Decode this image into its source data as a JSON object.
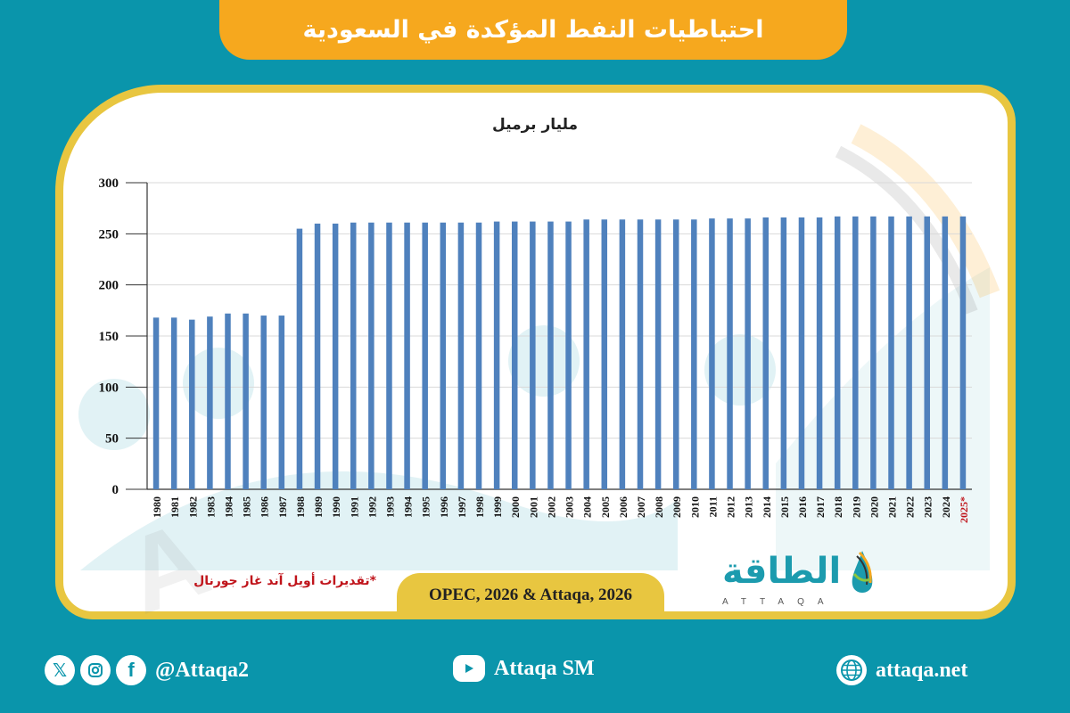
{
  "header": {
    "title": "احتياطيات النفط المؤكدة في السعودية"
  },
  "chart": {
    "unit_label": "مليار برميل",
    "note": "*تقديرات أويل آند غاز جورنال",
    "source": "OPEC, 2026 & Attaqa, 2026"
  },
  "logo": {
    "arabic": "الطاقة",
    "english": "ATTAQA"
  },
  "footer": {
    "social_handle": "@Attaqa2",
    "youtube": "Attaqa SM",
    "website": "attaqa.net",
    "icons": [
      "x-icon",
      "instagram-icon",
      "facebook-icon",
      "youtube-icon",
      "globe-icon"
    ]
  },
  "colors": {
    "background": "#0A95AB",
    "banner": "#F6A81E",
    "panel_border": "#E8C640",
    "bar": "#4F81BD",
    "estimate_label": "#C0141B"
  },
  "chart_data": {
    "type": "bar",
    "title": "احتياطيات النفط المؤكدة في السعودية",
    "ylabel": "مليار برميل",
    "xlabel": "",
    "ylim": [
      0,
      300
    ],
    "yticks": [
      0,
      50,
      100,
      150,
      200,
      250,
      300
    ],
    "grid": true,
    "legend": null,
    "categories": [
      "1980",
      "1981",
      "1982",
      "1983",
      "1984",
      "1985",
      "1986",
      "1987",
      "1988",
      "1989",
      "1990",
      "1991",
      "1992",
      "1993",
      "1994",
      "1995",
      "1996",
      "1997",
      "1998",
      "1999",
      "2000",
      "2001",
      "2002",
      "2003",
      "2004",
      "2005",
      "2006",
      "2007",
      "2008",
      "2009",
      "2010",
      "2011",
      "2012",
      "2013",
      "2014",
      "2015",
      "2016",
      "2017",
      "2018",
      "2019",
      "2020",
      "2021",
      "2022",
      "2023",
      "2024",
      "2025*"
    ],
    "values": [
      168,
      168,
      166,
      169,
      172,
      172,
      170,
      170,
      255,
      260,
      260,
      261,
      261,
      261,
      261,
      261,
      261,
      261,
      261,
      262,
      262,
      262,
      262,
      262,
      264,
      264,
      264,
      264,
      264,
      264,
      264,
      265,
      265,
      265,
      266,
      266,
      266,
      266,
      267,
      267,
      267,
      267,
      267,
      267,
      267,
      267
    ],
    "annotations": [
      "2025* = تقديرات أويل آند غاز جورنال"
    ]
  }
}
